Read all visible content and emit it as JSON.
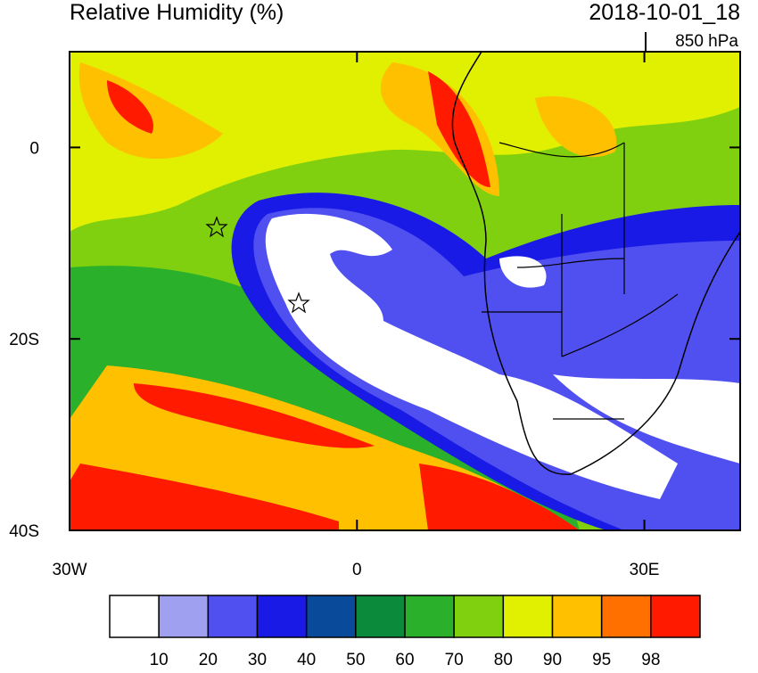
{
  "title": "Relative Humidity (%)",
  "valid_time": "2018-10-01_18",
  "level": "850 hPa",
  "map": {
    "lonlim": [
      -30,
      40
    ],
    "latlim": [
      -40,
      10
    ],
    "lon_ticks": [
      {
        "value": -30,
        "label": "30W"
      },
      0,
      {
        "value": 30,
        "label": "30E"
      }
    ],
    "lat_ticks": [
      0,
      {
        "value": -20,
        "label": "20S"
      },
      {
        "value": -40,
        "label": "40S"
      }
    ]
  },
  "colorbar": {
    "colors": [
      "#ffffff",
      "#a0a0f0",
      "#5050f0",
      "#1a1ae6",
      "#0a4a9a",
      "#0a8a3a",
      "#2ab02a",
      "#80d010",
      "#e0f000",
      "#ffc000",
      "#ff7000",
      "#ff1a00"
    ],
    "ticks": [
      10,
      20,
      30,
      40,
      50,
      60,
      70,
      80,
      90,
      95,
      98
    ]
  }
}
